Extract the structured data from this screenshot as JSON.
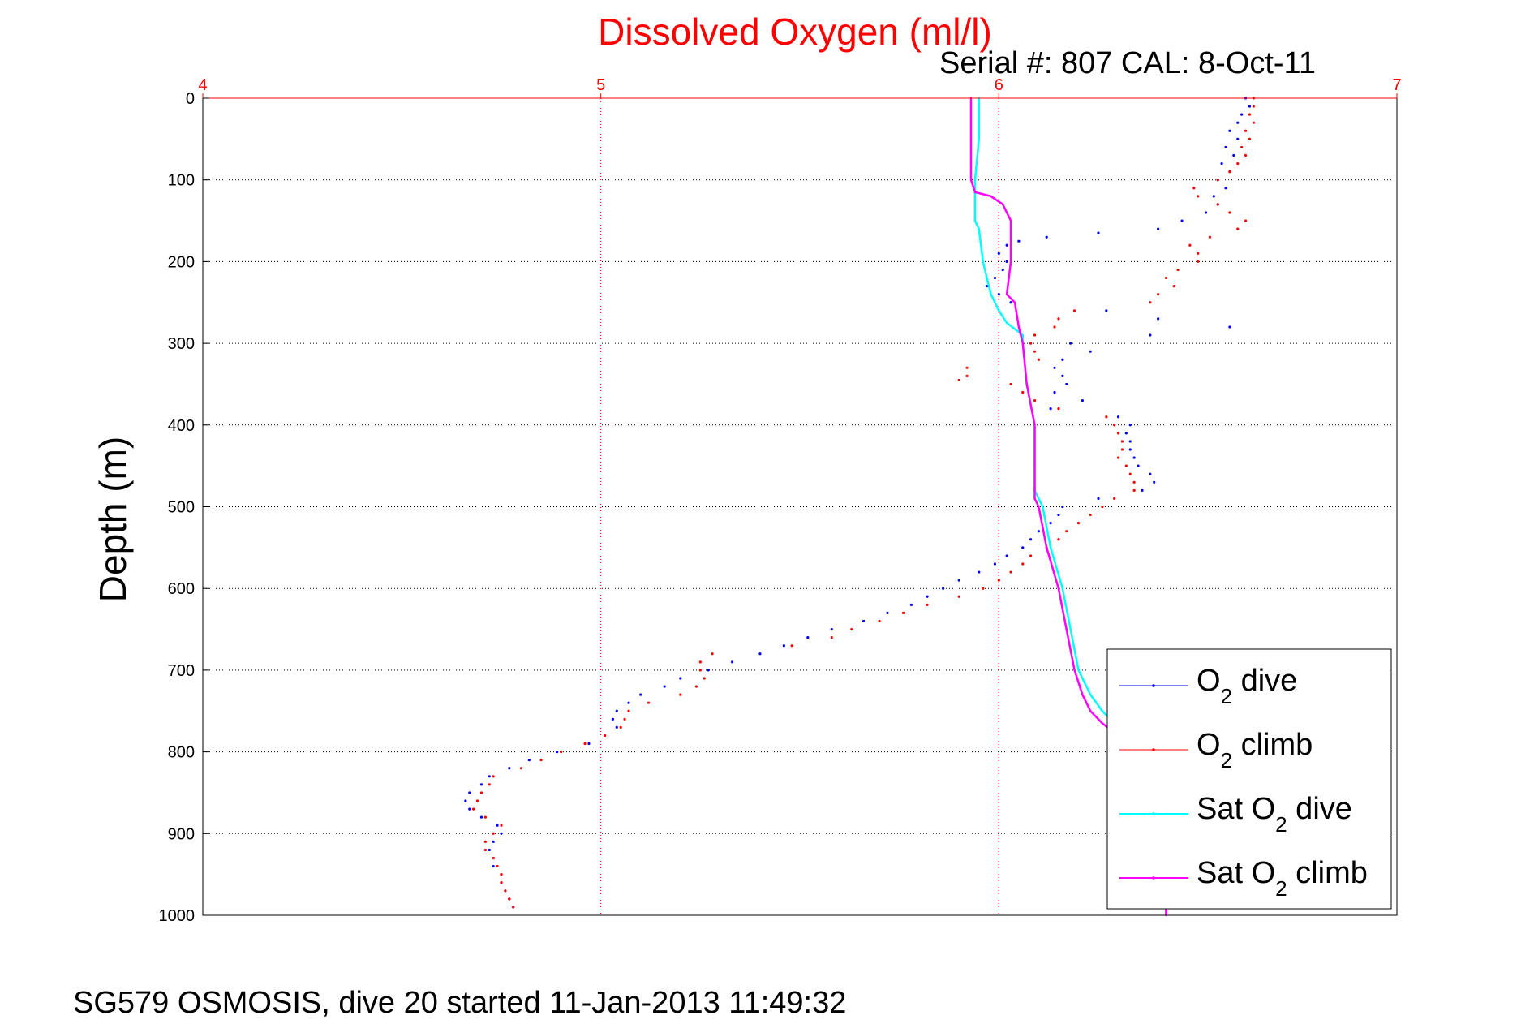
{
  "chart_data": {
    "type": "scatter",
    "title": "Dissolved Oxygen (ml/l)",
    "subtitle": "Serial #: 807  CAL: 8-Oct-11",
    "ylabel": "Depth (m)",
    "footer": "SG579 OSMOSIS, dive 20 started 11-Jan-2013 11:49:32",
    "xlim": [
      4,
      7
    ],
    "ylim": [
      0,
      1000
    ],
    "y_reversed": true,
    "x_axis_position": "top",
    "grid": true,
    "legend_position": "lower-right",
    "x_ticks": [
      "4",
      "5",
      "6",
      "7"
    ],
    "y_ticks": [
      "0",
      "100",
      "200",
      "300",
      "400",
      "500",
      "600",
      "700",
      "800",
      "900",
      "1000"
    ],
    "series": [
      {
        "name": "O2 dive",
        "label_main": "O",
        "label_sub": "2",
        "label_rest": " dive",
        "color": "#0000ff",
        "style": "dots",
        "points": [
          [
            6.62,
            0
          ],
          [
            6.63,
            10
          ],
          [
            6.61,
            20
          ],
          [
            6.6,
            30
          ],
          [
            6.58,
            40
          ],
          [
            6.6,
            50
          ],
          [
            6.57,
            60
          ],
          [
            6.59,
            70
          ],
          [
            6.56,
            80
          ],
          [
            6.58,
            90
          ],
          [
            6.55,
            100
          ],
          [
            6.57,
            110
          ],
          [
            6.54,
            120
          ],
          [
            6.55,
            130
          ],
          [
            6.52,
            140
          ],
          [
            6.46,
            150
          ],
          [
            6.4,
            160
          ],
          [
            6.25,
            165
          ],
          [
            6.12,
            170
          ],
          [
            6.05,
            175
          ],
          [
            6.02,
            180
          ],
          [
            6.0,
            190
          ],
          [
            6.02,
            200
          ],
          [
            6.01,
            210
          ],
          [
            5.99,
            220
          ],
          [
            5.97,
            230
          ],
          [
            6.0,
            240
          ],
          [
            6.03,
            250
          ],
          [
            6.27,
            260
          ],
          [
            6.4,
            270
          ],
          [
            6.58,
            280
          ],
          [
            6.38,
            290
          ],
          [
            6.18,
            300
          ],
          [
            6.23,
            310
          ],
          [
            6.16,
            320
          ],
          [
            6.14,
            330
          ],
          [
            6.16,
            340
          ],
          [
            6.17,
            350
          ],
          [
            6.14,
            360
          ],
          [
            6.21,
            370
          ],
          [
            6.13,
            380
          ],
          [
            6.3,
            390
          ],
          [
            6.33,
            400
          ],
          [
            6.32,
            410
          ],
          [
            6.33,
            420
          ],
          [
            6.33,
            430
          ],
          [
            6.34,
            440
          ],
          [
            6.35,
            450
          ],
          [
            6.38,
            460
          ],
          [
            6.39,
            470
          ],
          [
            6.36,
            480
          ],
          [
            6.25,
            490
          ],
          [
            6.16,
            500
          ],
          [
            6.15,
            510
          ],
          [
            6.13,
            520
          ],
          [
            6.1,
            530
          ],
          [
            6.08,
            540
          ],
          [
            6.06,
            550
          ],
          [
            6.02,
            560
          ],
          [
            5.99,
            570
          ],
          [
            5.95,
            580
          ],
          [
            5.9,
            590
          ],
          [
            5.86,
            600
          ],
          [
            5.82,
            610
          ],
          [
            5.78,
            620
          ],
          [
            5.72,
            630
          ],
          [
            5.66,
            640
          ],
          [
            5.58,
            650
          ],
          [
            5.52,
            660
          ],
          [
            5.46,
            670
          ],
          [
            5.4,
            680
          ],
          [
            5.33,
            690
          ],
          [
            5.27,
            700
          ],
          [
            5.2,
            710
          ],
          [
            5.16,
            720
          ],
          [
            5.1,
            730
          ],
          [
            5.07,
            740
          ],
          [
            5.04,
            750
          ],
          [
            5.03,
            760
          ],
          [
            5.04,
            770
          ],
          [
            5.01,
            780
          ],
          [
            4.97,
            790
          ],
          [
            4.89,
            800
          ],
          [
            4.82,
            810
          ],
          [
            4.77,
            820
          ],
          [
            4.72,
            830
          ],
          [
            4.7,
            840
          ],
          [
            4.67,
            850
          ],
          [
            4.66,
            860
          ],
          [
            4.67,
            870
          ],
          [
            4.7,
            880
          ],
          [
            4.74,
            890
          ],
          [
            4.75,
            900
          ],
          [
            4.73,
            910
          ],
          [
            4.72,
            920
          ],
          [
            4.73,
            930
          ],
          [
            4.73,
            940
          ],
          [
            4.75,
            950
          ],
          [
            4.75,
            960
          ],
          [
            4.76,
            970
          ],
          [
            4.77,
            980
          ],
          [
            4.78,
            990
          ]
        ]
      },
      {
        "name": "O2 climb",
        "label_main": "O",
        "label_sub": "2",
        "label_rest": " climb",
        "color": "#ff0000",
        "style": "dots",
        "points": [
          [
            6.64,
            0
          ],
          [
            6.64,
            10
          ],
          [
            6.63,
            20
          ],
          [
            6.64,
            30
          ],
          [
            6.62,
            40
          ],
          [
            6.63,
            50
          ],
          [
            6.61,
            60
          ],
          [
            6.62,
            70
          ],
          [
            6.6,
            80
          ],
          [
            6.58,
            90
          ],
          [
            6.55,
            100
          ],
          [
            6.49,
            110
          ],
          [
            6.5,
            120
          ],
          [
            6.55,
            130
          ],
          [
            6.58,
            140
          ],
          [
            6.62,
            150
          ],
          [
            6.6,
            160
          ],
          [
            6.53,
            170
          ],
          [
            6.48,
            180
          ],
          [
            6.5,
            190
          ],
          [
            6.5,
            200
          ],
          [
            6.45,
            210
          ],
          [
            6.42,
            220
          ],
          [
            6.44,
            230
          ],
          [
            6.4,
            240
          ],
          [
            6.38,
            250
          ],
          [
            6.19,
            260
          ],
          [
            6.15,
            270
          ],
          [
            6.14,
            280
          ],
          [
            6.09,
            290
          ],
          [
            6.08,
            300
          ],
          [
            6.09,
            310
          ],
          [
            6.1,
            320
          ],
          [
            5.92,
            330
          ],
          [
            5.92,
            340
          ],
          [
            5.9,
            345
          ],
          [
            6.03,
            350
          ],
          [
            6.06,
            360
          ],
          [
            6.09,
            370
          ],
          [
            6.15,
            380
          ],
          [
            6.27,
            390
          ],
          [
            6.29,
            400
          ],
          [
            6.3,
            410
          ],
          [
            6.31,
            420
          ],
          [
            6.31,
            430
          ],
          [
            6.3,
            440
          ],
          [
            6.32,
            450
          ],
          [
            6.33,
            460
          ],
          [
            6.34,
            470
          ],
          [
            6.34,
            480
          ],
          [
            6.29,
            490
          ],
          [
            6.26,
            500
          ],
          [
            6.23,
            510
          ],
          [
            6.2,
            520
          ],
          [
            6.17,
            530
          ],
          [
            6.15,
            540
          ],
          [
            6.12,
            550
          ],
          [
            6.08,
            560
          ],
          [
            6.06,
            570
          ],
          [
            6.03,
            580
          ],
          [
            6.0,
            590
          ],
          [
            5.96,
            600
          ],
          [
            5.9,
            610
          ],
          [
            5.82,
            620
          ],
          [
            5.76,
            630
          ],
          [
            5.7,
            640
          ],
          [
            5.63,
            650
          ],
          [
            5.58,
            660
          ],
          [
            5.48,
            670
          ],
          [
            5.28,
            680
          ],
          [
            5.25,
            690
          ],
          [
            5.25,
            700
          ],
          [
            5.26,
            710
          ],
          [
            5.24,
            720
          ],
          [
            5.2,
            730
          ],
          [
            5.12,
            740
          ],
          [
            5.07,
            750
          ],
          [
            5.06,
            760
          ],
          [
            5.05,
            770
          ],
          [
            5.01,
            780
          ],
          [
            4.96,
            790
          ],
          [
            4.9,
            800
          ],
          [
            4.85,
            810
          ],
          [
            4.8,
            820
          ],
          [
            4.73,
            830
          ],
          [
            4.72,
            840
          ],
          [
            4.7,
            850
          ],
          [
            4.69,
            860
          ],
          [
            4.68,
            870
          ],
          [
            4.71,
            880
          ],
          [
            4.75,
            890
          ],
          [
            4.73,
            900
          ],
          [
            4.71,
            910
          ],
          [
            4.71,
            920
          ],
          [
            4.73,
            930
          ],
          [
            4.74,
            940
          ],
          [
            4.75,
            950
          ],
          [
            4.75,
            960
          ],
          [
            4.76,
            970
          ],
          [
            4.77,
            980
          ],
          [
            4.78,
            990
          ]
        ]
      },
      {
        "name": "Sat O2 dive",
        "label_main": "Sat O",
        "label_sub": "2",
        "label_rest": " dive",
        "color": "#00ffff",
        "style": "line",
        "points": [
          [
            5.95,
            0
          ],
          [
            5.95,
            50
          ],
          [
            5.94,
            100
          ],
          [
            5.94,
            130
          ],
          [
            5.94,
            150
          ],
          [
            5.95,
            160
          ],
          [
            5.96,
            200
          ],
          [
            5.98,
            240
          ],
          [
            6.0,
            260
          ],
          [
            6.02,
            275
          ],
          [
            6.06,
            290
          ],
          [
            6.06,
            300
          ],
          [
            6.07,
            350
          ],
          [
            6.09,
            400
          ],
          [
            6.09,
            450
          ],
          [
            6.09,
            480
          ],
          [
            6.11,
            500
          ],
          [
            6.13,
            550
          ],
          [
            6.16,
            600
          ],
          [
            6.18,
            650
          ],
          [
            6.2,
            700
          ],
          [
            6.23,
            730
          ],
          [
            6.26,
            750
          ],
          [
            6.3,
            770
          ],
          [
            6.34,
            790
          ],
          [
            6.38,
            800
          ]
        ]
      },
      {
        "name": "Sat O2 climb",
        "label_main": "Sat O",
        "label_sub": "2",
        "label_rest": " climb",
        "color": "#ff00ff",
        "style": "line",
        "points": [
          [
            5.93,
            0
          ],
          [
            5.93,
            50
          ],
          [
            5.93,
            100
          ],
          [
            5.94,
            115
          ],
          [
            5.98,
            120
          ],
          [
            6.01,
            130
          ],
          [
            6.03,
            150
          ],
          [
            6.03,
            180
          ],
          [
            6.03,
            200
          ],
          [
            6.02,
            240
          ],
          [
            6.04,
            250
          ],
          [
            6.05,
            280
          ],
          [
            6.06,
            300
          ],
          [
            6.07,
            350
          ],
          [
            6.09,
            400
          ],
          [
            6.09,
            450
          ],
          [
            6.09,
            490
          ],
          [
            6.1,
            500
          ],
          [
            6.12,
            550
          ],
          [
            6.15,
            600
          ],
          [
            6.17,
            650
          ],
          [
            6.19,
            700
          ],
          [
            6.21,
            730
          ],
          [
            6.23,
            750
          ],
          [
            6.26,
            765
          ],
          [
            6.3,
            780
          ],
          [
            6.4,
            850
          ],
          [
            6.42,
            930
          ],
          [
            6.42,
            980
          ],
          [
            6.42,
            1000
          ]
        ]
      }
    ]
  }
}
